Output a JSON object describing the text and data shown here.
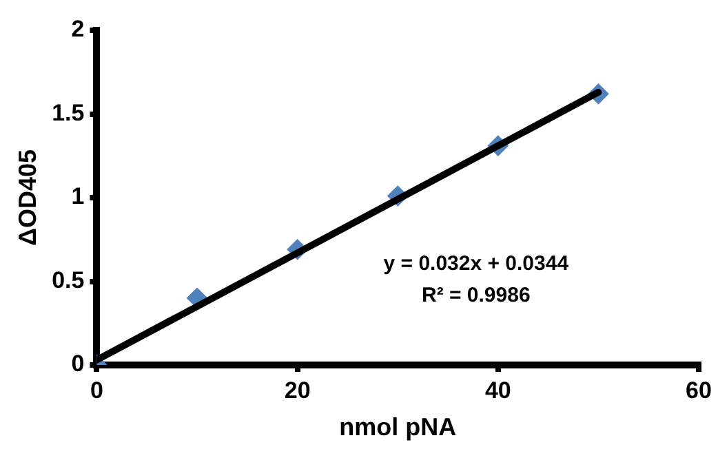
{
  "chart_data": {
    "type": "scatter",
    "xlabel": "nmol pNA",
    "ylabel": "ΔOD405",
    "xlim": [
      0,
      60
    ],
    "xticks": [
      0,
      20,
      40,
      60
    ],
    "ylim": [
      0,
      2
    ],
    "yticks": [
      0,
      0.5,
      1,
      1.5,
      2
    ],
    "grid": false,
    "legend": false,
    "marker": "diamond",
    "series": [
      {
        "color": "#4f81bd",
        "x": [
          0,
          10,
          20,
          30,
          40,
          50
        ],
        "values": [
          0,
          0.4,
          0.69,
          1.01,
          1.31,
          1.62
        ]
      },
      {
        "type": "line",
        "color": "#000000",
        "x": [
          0,
          50
        ],
        "values": [
          0.03,
          1.63
        ],
        "line_style": "solid",
        "marker": "none"
      }
    ],
    "annotations": [
      "y = 0.032x + 0.0344",
      "R² = 0.9986"
    ]
  }
}
